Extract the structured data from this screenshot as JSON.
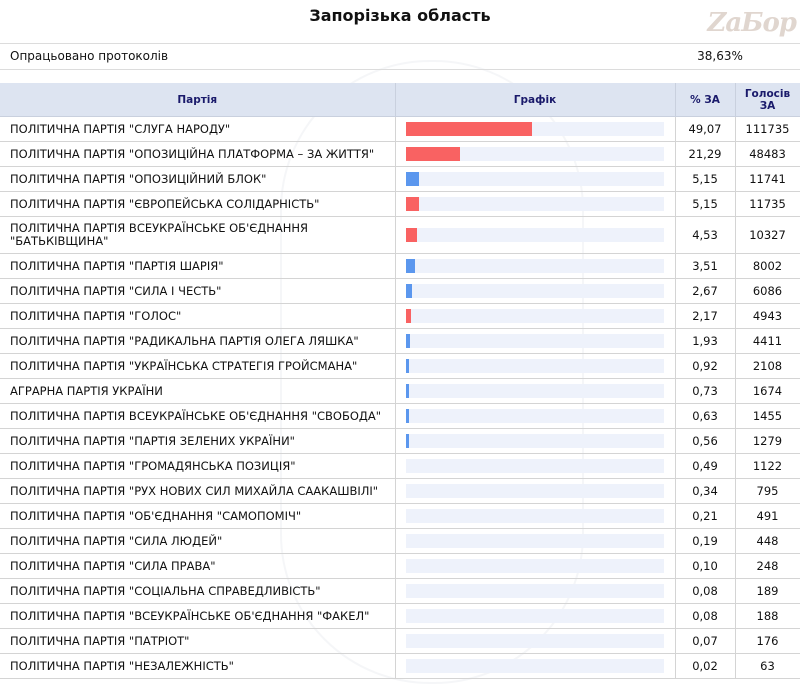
{
  "title": "Запорізька область",
  "watermark": "ZaБор",
  "processed": {
    "label": "Опрацьовано протоколів",
    "value": "38,63%"
  },
  "headers": {
    "party": "Партія",
    "graph": "Графік",
    "percent": "% ЗА",
    "votes": "Голосів ЗА"
  },
  "colors": {
    "red": "#f96262",
    "blue": "#5b97ee",
    "track": "#eef2fb",
    "header_bg": "#dde4f1"
  },
  "chart_data": {
    "type": "bar",
    "categories": [
      "ПОЛІТИЧНА ПАРТІЯ \"СЛУГА НАРОДУ\"",
      "ПОЛІТИЧНА ПАРТІЯ \"ОПОЗИЦІЙНА ПЛАТФОРМА – ЗА ЖИТТЯ\"",
      "ПОЛІТИЧНА ПАРТІЯ \"ОПОЗИЦІЙНИЙ БЛОК\"",
      "ПОЛІТИЧНА ПАРТІЯ \"ЄВРОПЕЙСЬКА СОЛІДАРНІСТЬ\"",
      "ПОЛІТИЧНА ПАРТІЯ ВСЕУКРАЇНСЬКЕ ОБ'ЄДНАННЯ \"БАТЬКІВЩИНА\"",
      "ПОЛІТИЧНА ПАРТІЯ \"ПАРТІЯ ШАРІЯ\"",
      "ПОЛІТИЧНА ПАРТІЯ \"СИЛА І ЧЕСТЬ\"",
      "ПОЛІТИЧНА ПАРТІЯ \"ГОЛОС\"",
      "ПОЛІТИЧНА ПАРТІЯ \"РАДИКАЛЬНА ПАРТІЯ ОЛЕГА ЛЯШКА\"",
      "ПОЛІТИЧНА ПАРТІЯ \"УКРАЇНСЬКА СТРАТЕГІЯ ГРОЙСМАНА\"",
      "АГРАРНА ПАРТІЯ УКРАЇНИ",
      "ПОЛІТИЧНА ПАРТІЯ ВСЕУКРАЇНСЬКЕ ОБ'ЄДНАННЯ \"СВОБОДА\"",
      "ПОЛІТИЧНА ПАРТІЯ \"ПАРТІЯ ЗЕЛЕНИХ УКРАЇНИ\"",
      "ПОЛІТИЧНА ПАРТІЯ \"ГРОМАДЯНСЬКА ПОЗИЦІЯ\"",
      "ПОЛІТИЧНА ПАРТІЯ \"РУХ НОВИХ СИЛ МИХАЙЛА СААКАШВІЛІ\"",
      "ПОЛІТИЧНА ПАРТІЯ \"ОБ'ЄДНАННЯ \"САМОПОМІЧ\"",
      "ПОЛІТИЧНА ПАРТІЯ \"СИЛА ЛЮДЕЙ\"",
      "ПОЛІТИЧНА ПАРТІЯ \"СИЛА ПРАВА\"",
      "ПОЛІТИЧНА ПАРТІЯ \"СОЦІАЛЬНА СПРАВЕДЛИВІСТЬ\"",
      "ПОЛІТИЧНА ПАРТІЯ \"ВСЕУКРАЇНСЬКЕ ОБ'ЄДНАННЯ \"ФАКЕЛ\"",
      "ПОЛІТИЧНА ПАРТІЯ \"ПАТРІОТ\"",
      "ПОЛІТИЧНА ПАРТІЯ \"НЕЗАЛЕЖНІСТЬ\""
    ],
    "values": [
      49.07,
      21.29,
      5.15,
      5.15,
      4.53,
      3.51,
      2.67,
      2.17,
      1.93,
      0.92,
      0.73,
      0.63,
      0.56,
      0.49,
      0.34,
      0.21,
      0.19,
      0.1,
      0.08,
      0.08,
      0.07,
      0.02
    ],
    "percent_labels": [
      "49,07",
      "21,29",
      "5,15",
      "5,15",
      "4,53",
      "3,51",
      "2,67",
      "2,17",
      "1,93",
      "0,92",
      "0,73",
      "0,63",
      "0,56",
      "0,49",
      "0,34",
      "0,21",
      "0,19",
      "0,10",
      "0,08",
      "0,08",
      "0,07",
      "0,02"
    ],
    "votes": [
      "111735",
      "48483",
      "11741",
      "11735",
      "10327",
      "8002",
      "6086",
      "4943",
      "4411",
      "2108",
      "1674",
      "1455",
      "1279",
      "1122",
      "795",
      "491",
      "448",
      "248",
      "189",
      "188",
      "176",
      "63"
    ],
    "bar_colors": [
      "red",
      "red",
      "blue",
      "red",
      "red",
      "blue",
      "blue",
      "red",
      "blue",
      "blue",
      "blue",
      "blue",
      "blue",
      "blue",
      "blue",
      "blue",
      "blue",
      "blue",
      "blue",
      "blue",
      "blue",
      "blue"
    ],
    "xlim": [
      0,
      100
    ]
  }
}
